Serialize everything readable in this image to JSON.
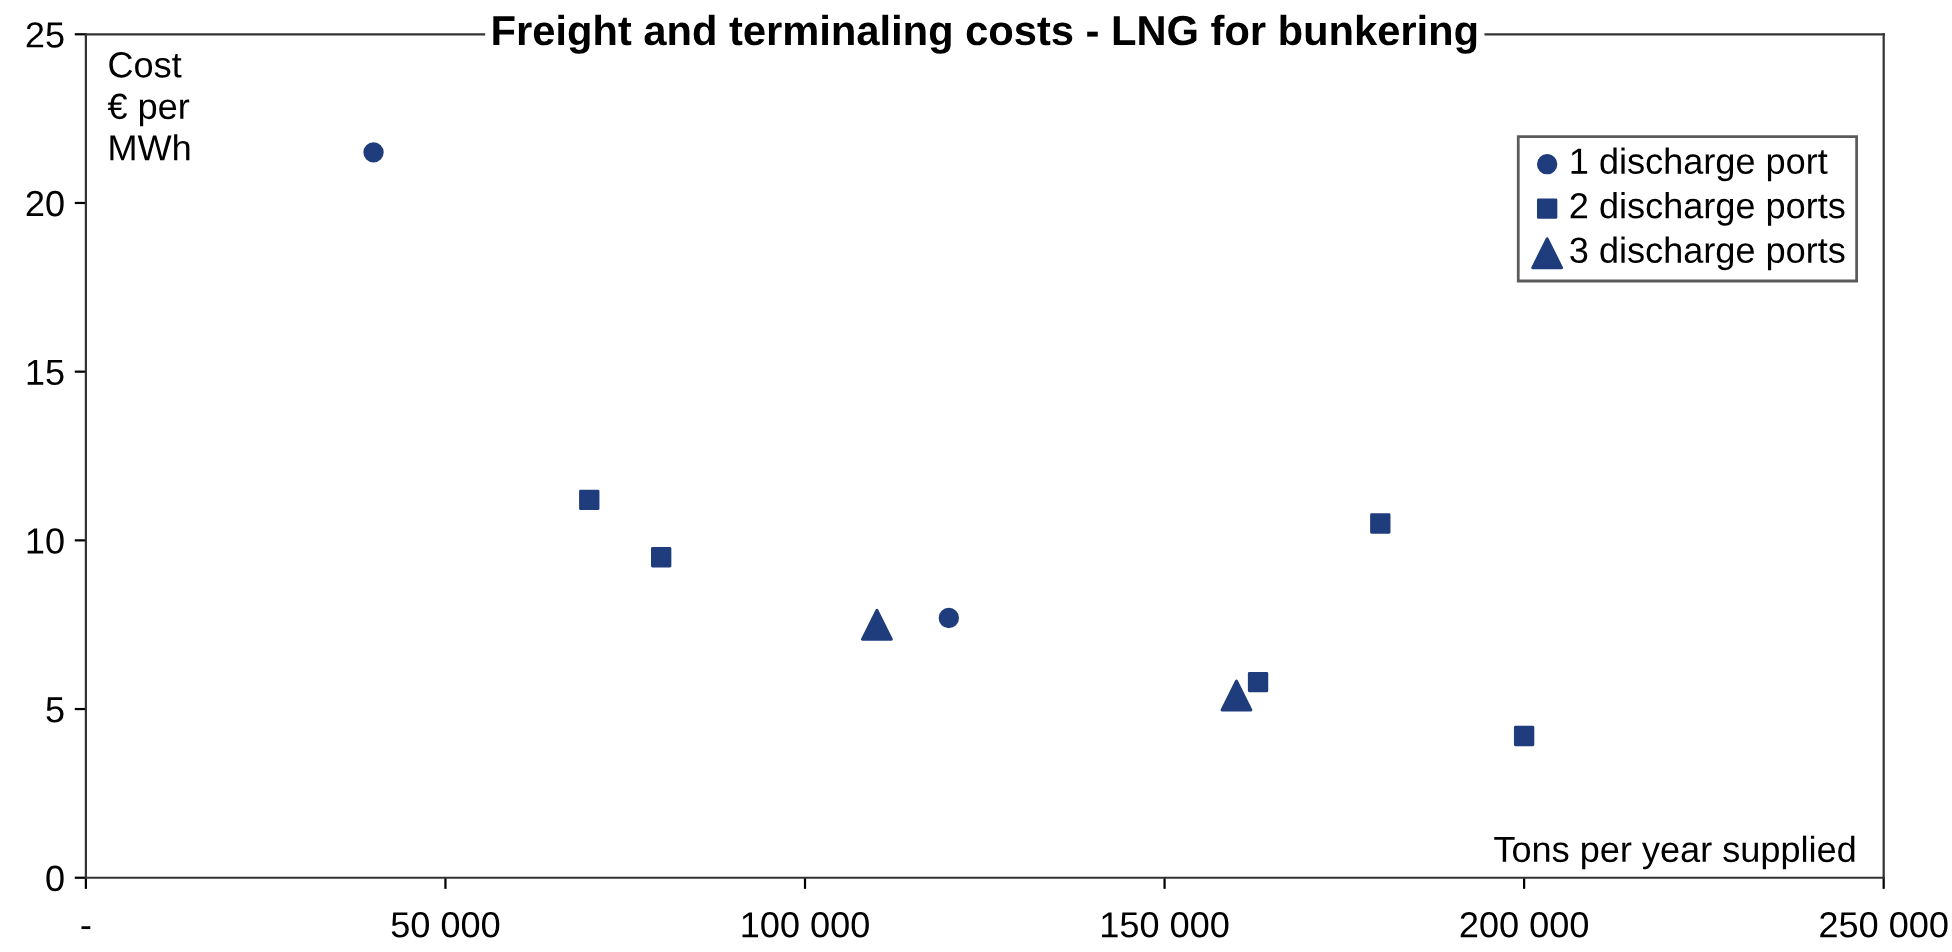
{
  "chart_data": {
    "type": "scatter",
    "title": "Freight and terminaling costs - LNG for bunkering",
    "xlabel": "Tons per year supplied",
    "ylabel": "Cost\n€ per\nMWh",
    "series": [
      {
        "name": "1 discharge port",
        "color": "#1f3c7c",
        "marker": "circle",
        "x": [
          40000,
          120000
        ],
        "values": [
          21.5,
          7.7
        ]
      },
      {
        "name": "2 discharge ports",
        "color": "#1f3c7c",
        "marker": "square",
        "x": [
          70000,
          80000,
          163000,
          180000,
          200000
        ],
        "values": [
          11.2,
          9.5,
          5.8,
          10.5,
          4.2
        ]
      },
      {
        "name": "3 discharge ports",
        "color": "#1f3c7c",
        "marker": "triangle",
        "x": [
          110000,
          160000
        ],
        "values": [
          7.5,
          5.4
        ]
      }
    ],
    "xlim": [
      0,
      250000
    ],
    "ylim": [
      0,
      25
    ],
    "xticks": [
      {
        "value": 0,
        "label": "-"
      },
      {
        "value": 50000,
        "label": "50 000"
      },
      {
        "value": 100000,
        "label": "100 000"
      },
      {
        "value": 150000,
        "label": "150 000"
      },
      {
        "value": 200000,
        "label": "200 000"
      },
      {
        "value": 250000,
        "label": "250 000"
      }
    ],
    "yticks": [
      0,
      5,
      10,
      15,
      20,
      25
    ],
    "grid": false,
    "legend": "top right"
  }
}
